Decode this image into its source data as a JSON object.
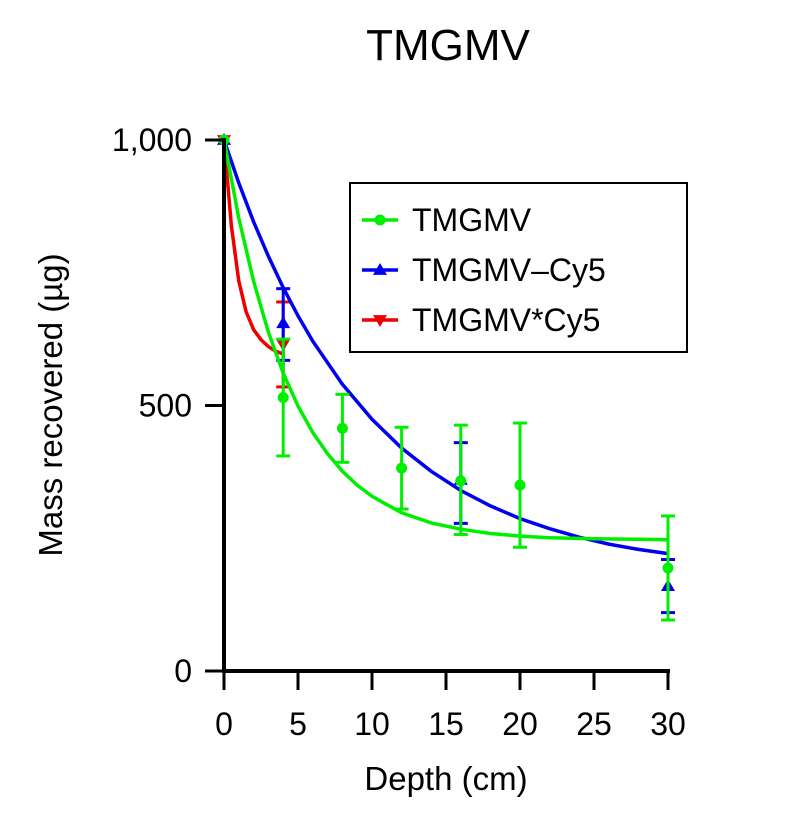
{
  "chart_data": {
    "type": "line",
    "title": "TMGMV",
    "xlabel": "Depth (cm)",
    "ylabel": "Mass recovered (µg)",
    "xlim": [
      0,
      30
    ],
    "ylim": [
      0,
      1000
    ],
    "xticks": [
      0,
      5,
      10,
      15,
      20,
      25,
      30
    ],
    "xtick_labels": [
      "0",
      "5",
      "10",
      "15",
      "20",
      "25",
      "30"
    ],
    "yticks": [
      0,
      500,
      1000
    ],
    "ytick_labels": [
      "0",
      "500",
      "1,000"
    ],
    "grid": false,
    "legend_position": "top-right",
    "series": [
      {
        "name": "TMGMV",
        "color": "#00ee00",
        "marker": "circle",
        "points": [
          {
            "x": 0,
            "y": 1000
          },
          {
            "x": 4,
            "y": 515,
            "err_low": 405,
            "err_high": 625
          },
          {
            "x": 8,
            "y": 457,
            "err_low": 393,
            "err_high": 521
          },
          {
            "x": 12,
            "y": 382,
            "err_low": 305,
            "err_high": 459
          },
          {
            "x": 16,
            "y": 358,
            "err_low": 257,
            "err_high": 463
          },
          {
            "x": 20,
            "y": 350,
            "err_low": 233,
            "err_high": 467
          },
          {
            "x": 30,
            "y": 194,
            "err_low": 96,
            "err_high": 292
          }
        ],
        "fit_curve": [
          [
            0,
            1000
          ],
          [
            1,
            853
          ],
          [
            2,
            734
          ],
          [
            3,
            638
          ],
          [
            4,
            561
          ],
          [
            5,
            499
          ],
          [
            6,
            449
          ],
          [
            7,
            409
          ],
          [
            8,
            376
          ],
          [
            9,
            350
          ],
          [
            10,
            329
          ],
          [
            12,
            298
          ],
          [
            14,
            279
          ],
          [
            16,
            267
          ],
          [
            18,
            259
          ],
          [
            20,
            254
          ],
          [
            22,
            251
          ],
          [
            25,
            249
          ],
          [
            28,
            248
          ],
          [
            30,
            247
          ]
        ]
      },
      {
        "name": "TMGMV–Cy5",
        "color": "#0000ee",
        "marker": "triangle-up",
        "points": [
          {
            "x": 0,
            "y": 1000
          },
          {
            "x": 4,
            "y": 655,
            "err_low": 585,
            "err_high": 720
          },
          {
            "x": 16,
            "y": 360,
            "err_low": 278,
            "err_high": 430
          },
          {
            "x": 30,
            "y": 160,
            "err_low": 110,
            "err_high": 210
          }
        ],
        "fit_curve": [
          [
            0,
            1000
          ],
          [
            1,
            919
          ],
          [
            2,
            846
          ],
          [
            3,
            781
          ],
          [
            4,
            722
          ],
          [
            5,
            669
          ],
          [
            6,
            621
          ],
          [
            8,
            540
          ],
          [
            10,
            474
          ],
          [
            12,
            420
          ],
          [
            14,
            376
          ],
          [
            16,
            340
          ],
          [
            18,
            311
          ],
          [
            20,
            287
          ],
          [
            22,
            268
          ],
          [
            24,
            252
          ],
          [
            26,
            239
          ],
          [
            28,
            229
          ],
          [
            30,
            221
          ]
        ]
      },
      {
        "name": "TMGMV*Cy5",
        "color": "#ee0000",
        "marker": "triangle-down",
        "points": [
          {
            "x": 0,
            "y": 1000
          },
          {
            "x": 4,
            "y": 615,
            "err_low": 535,
            "err_high": 695
          }
        ],
        "fit_curve": [
          [
            0,
            1000
          ],
          [
            0.5,
            838
          ],
          [
            1,
            734
          ],
          [
            1.5,
            676
          ],
          [
            2,
            643
          ],
          [
            2.5,
            624
          ],
          [
            3,
            611
          ],
          [
            3.5,
            602
          ],
          [
            4,
            597
          ]
        ]
      }
    ]
  }
}
